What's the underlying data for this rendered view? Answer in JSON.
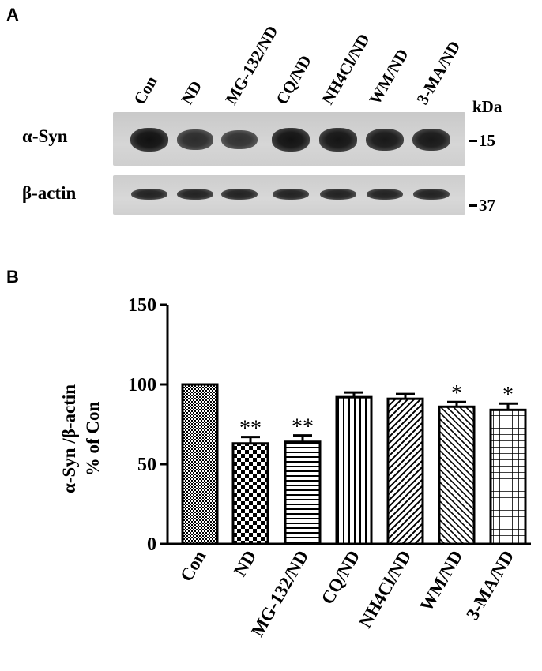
{
  "panel_a": {
    "letter": "A",
    "lanes": [
      "Con",
      "ND",
      "MG-132/ND",
      "CQ/ND",
      "NH4Cl/ND",
      "WM/ND",
      "3-MA/ND"
    ],
    "kda_label": "kDa",
    "rows": [
      {
        "label": "α-Syn",
        "mw": "15",
        "intensities": [
          1.0,
          0.7,
          0.62,
          0.98,
          0.96,
          0.92,
          0.9
        ]
      },
      {
        "label": "β-actin",
        "mw": "37",
        "intensities": [
          0.8,
          0.8,
          0.8,
          0.8,
          0.8,
          0.8,
          0.8
        ]
      }
    ]
  },
  "panel_b": {
    "letter": "B"
  },
  "chart_data": {
    "type": "bar",
    "categories": [
      "Con",
      "ND",
      "MG-132/ND",
      "CQ/ND",
      "NH4Cl/ND",
      "WM/ND",
      "3-MA/ND"
    ],
    "values": [
      100,
      63,
      64,
      92,
      91,
      86,
      84
    ],
    "errors": [
      0,
      4,
      4,
      3,
      3,
      3,
      4
    ],
    "significance": [
      "",
      "**",
      "**",
      "",
      "",
      "*",
      "*"
    ],
    "patterns": [
      "dots",
      "checker",
      "hlines",
      "vlines",
      "diag-fwd",
      "diag-back",
      "grid"
    ],
    "ylabel_line1": "α-Syn /β-actin",
    "ylabel_line2": "% of Con",
    "ylim": [
      0,
      150
    ],
    "yticks": [
      0,
      50,
      100,
      150
    ],
    "title": ""
  }
}
